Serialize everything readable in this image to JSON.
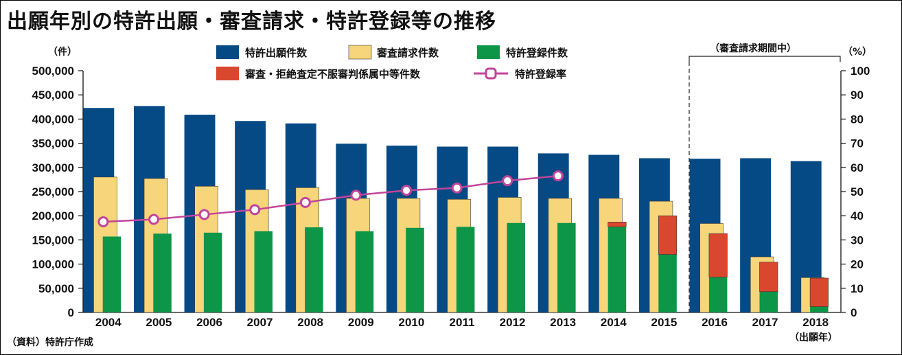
{
  "title": "出願年別の特許出願・審査請求・特許登録等の推移",
  "source_note": "（資料）特許庁作成",
  "left_unit": "（件）",
  "right_unit": "（%）",
  "x_unit": "（出願年）",
  "period_note": "（審査請求期間中）",
  "colors": {
    "applications": "#064a85",
    "exam_requests": "#f7d57a",
    "registrations": "#0d9548",
    "pending": "#d9472f",
    "rate": "#c2449a"
  },
  "legend": {
    "applications": "特許出願件数",
    "exam_requests": "審査請求件数",
    "registrations": "特許登録件数",
    "pending": "審査・拒絶査定不服審判係属中等件数",
    "rate": "特許登録率"
  },
  "chart_data": {
    "type": "bar",
    "categories": [
      "2004",
      "2005",
      "2006",
      "2007",
      "2008",
      "2009",
      "2010",
      "2011",
      "2012",
      "2013",
      "2014",
      "2015",
      "2016",
      "2017",
      "2018"
    ],
    "series": [
      {
        "name": "特許出願件数",
        "values": [
          423000,
          427000,
          409000,
          396000,
          391000,
          349000,
          345000,
          343000,
          343000,
          329000,
          326000,
          319000,
          318000,
          319000,
          313000
        ]
      },
      {
        "name": "審査請求件数",
        "values": [
          280000,
          277000,
          261000,
          254000,
          258000,
          236000,
          236000,
          234000,
          238000,
          236000,
          236000,
          230000,
          184000,
          115000,
          72000
        ]
      },
      {
        "name": "特許登録件数",
        "values": [
          157000,
          163000,
          165000,
          168000,
          176000,
          168000,
          175000,
          177000,
          185000,
          185000,
          177000,
          120000,
          73000,
          43000,
          12000
        ]
      },
      {
        "name": "審査・拒絶査定不服審判係属中等件数",
        "values": [
          0,
          0,
          0,
          0,
          0,
          0,
          0,
          0,
          0,
          0,
          10000,
          80000,
          90000,
          61000,
          59000
        ]
      },
      {
        "name": "特許登録率",
        "axis": "right",
        "values": [
          37.5,
          38.5,
          40.5,
          42.5,
          45.5,
          48.5,
          50.5,
          51.5,
          54.5,
          56.5,
          null,
          null,
          null,
          null,
          null
        ]
      }
    ],
    "ylim": [
      0,
      500000
    ],
    "y_ticks": [
      "0",
      "50,000",
      "100,000",
      "150,000",
      "200,000",
      "250,000",
      "300,000",
      "350,000",
      "400,000",
      "450,000",
      "500,000"
    ],
    "y2lim": [
      0,
      100
    ],
    "y2_ticks": [
      "0",
      "10",
      "20",
      "30",
      "40",
      "50",
      "60",
      "70",
      "80",
      "90",
      "100"
    ],
    "legend_position": "top",
    "grid": false
  }
}
